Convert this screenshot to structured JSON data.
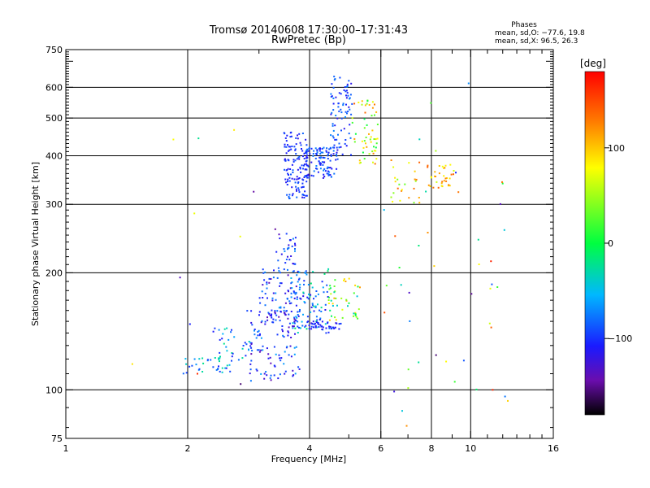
{
  "chart_data": {
    "type": "scatter",
    "title": "Tromsø 20140608 17:30:00–17:31:43",
    "subtitle": "RwPretec (Bp)",
    "stats_title": "Phases",
    "stats_lines": [
      "mean, sd,O: −77.6, 19.8",
      "mean, sd,X:  96.5, 26.3"
    ],
    "xlabel": "Frequency [MHz]",
    "ylabel": "Stationary phase Virtual Height [km]",
    "x_scale": "log",
    "y_scale": "log",
    "xlim": [
      1,
      16
    ],
    "ylim": [
      75,
      750
    ],
    "x_ticks": [
      1,
      2,
      4,
      6,
      8,
      10,
      16
    ],
    "x_tick_labels": [
      "1",
      "2",
      "4",
      "6",
      "8",
      "10",
      "16"
    ],
    "x_grid": [
      2,
      4,
      6,
      8,
      10
    ],
    "y_ticks": [
      75,
      100,
      200,
      300,
      400,
      500,
      600,
      750
    ],
    "y_tick_labels": [
      "75",
      "100",
      "200",
      "300",
      "400",
      "500",
      "600",
      "750"
    ],
    "y_grid": [
      100,
      200,
      300,
      400,
      500,
      600
    ],
    "grid": true,
    "colorbar": {
      "label": "[deg]",
      "min": -180,
      "max": 180,
      "ticks": [
        100,
        0,
        -100
      ],
      "tick_labels": [
        "100",
        "0",
        "−100"
      ]
    },
    "point_groups": [
      {
        "x_range": [
          1.95,
          2.6
        ],
        "y_range": [
          110,
          122
        ],
        "phase_range": [
          -110,
          -20
        ],
        "count": 35
      },
      {
        "x_range": [
          2.3,
          3.0
        ],
        "y_range": [
          118,
          145
        ],
        "phase_range": [
          -110,
          -20
        ],
        "count": 35
      },
      {
        "x_range": [
          2.8,
          3.8
        ],
        "y_range": [
          105,
          160
        ],
        "phase_range": [
          -140,
          -60
        ],
        "count": 110
      },
      {
        "x_range": [
          3.0,
          3.8
        ],
        "y_range": [
          150,
          205
        ],
        "phase_range": [
          -140,
          -60
        ],
        "count": 90
      },
      {
        "x_range": [
          3.3,
          3.7
        ],
        "y_range": [
          200,
          255
        ],
        "phase_range": [
          -140,
          -70
        ],
        "count": 35
      },
      {
        "x_range": [
          3.6,
          4.5
        ],
        "y_range": [
          140,
          205
        ],
        "phase_range": [
          -120,
          -10
        ],
        "count": 90
      },
      {
        "x_range": [
          3.9,
          4.8
        ],
        "y_range": [
          143,
          150
        ],
        "phase_range": [
          -120,
          -90
        ],
        "count": 40
      },
      {
        "x_range": [
          4.4,
          5.4
        ],
        "y_range": [
          150,
          195
        ],
        "phase_range": [
          -60,
          120
        ],
        "count": 45
      },
      {
        "x_range": [
          3.45,
          3.95
        ],
        "y_range": [
          310,
          460
        ],
        "phase_range": [
          -120,
          -80
        ],
        "count": 130
      },
      {
        "x_range": [
          3.9,
          4.7
        ],
        "y_range": [
          350,
          420
        ],
        "phase_range": [
          -120,
          -70
        ],
        "count": 110
      },
      {
        "x_range": [
          4.5,
          5.1
        ],
        "y_range": [
          400,
          640
        ],
        "phase_range": [
          -120,
          -70
        ],
        "count": 80
      },
      {
        "x_range": [
          5.1,
          5.9
        ],
        "y_range": [
          380,
          560
        ],
        "phase_range": [
          -10,
          150
        ],
        "count": 55
      },
      {
        "x_range": [
          6.3,
          7.6
        ],
        "y_range": [
          300,
          400
        ],
        "phase_range": [
          30,
          140
        ],
        "count": 25
      },
      {
        "x_range": [
          7.8,
          9.2
        ],
        "y_range": [
          330,
          380
        ],
        "phase_range": [
          60,
          140
        ],
        "count": 35
      },
      {
        "x_range": [
          6.0,
          12.5
        ],
        "y_range": [
          80,
          620
        ],
        "phase_range": [
          -160,
          170
        ],
        "count": 45
      },
      {
        "x_range": [
          1.3,
          3.4
        ],
        "y_range": [
          95,
          520
        ],
        "phase_range": [
          -160,
          170
        ],
        "count": 12
      }
    ]
  }
}
